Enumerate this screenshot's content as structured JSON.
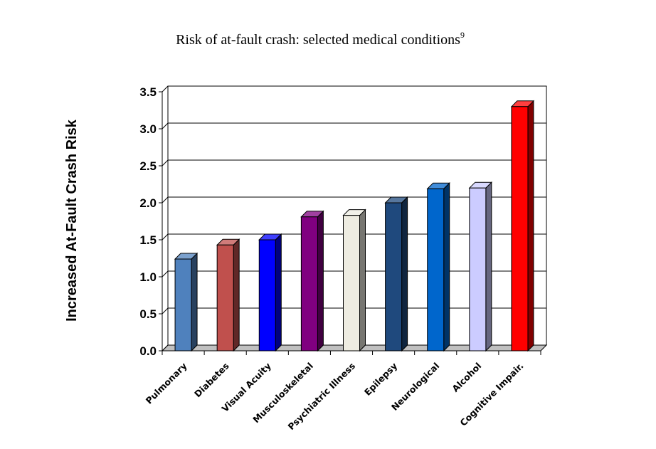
{
  "chart_data": {
    "type": "bar",
    "title": "Risk of at-fault crash: selected medical conditions",
    "title_superscript": "9",
    "ylabel": "Increased At-Fault Crash Risk",
    "xlabel": "",
    "ylim": [
      0,
      3.5
    ],
    "yticks": [
      "0.0",
      "0.5",
      "1.0",
      "1.5",
      "2.0",
      "2.5",
      "3.0",
      "3.5"
    ],
    "grid": true,
    "categories": [
      "Pulmonary",
      "Diabetes",
      "Visual Acuity",
      "Musculoskeletal",
      "Psychiatric Illness",
      "Epilepsy",
      "Neurological",
      "Alcohol",
      "Cognitive Impair."
    ],
    "values": [
      1.24,
      1.43,
      1.5,
      1.81,
      1.83,
      2.0,
      2.19,
      2.2,
      3.3
    ],
    "colors": [
      "#4f81bd",
      "#c0504d",
      "#0000ff",
      "#800080",
      "#eeece1",
      "#1f497d",
      "#0066cc",
      "#ccccff",
      "#ff0000"
    ]
  }
}
